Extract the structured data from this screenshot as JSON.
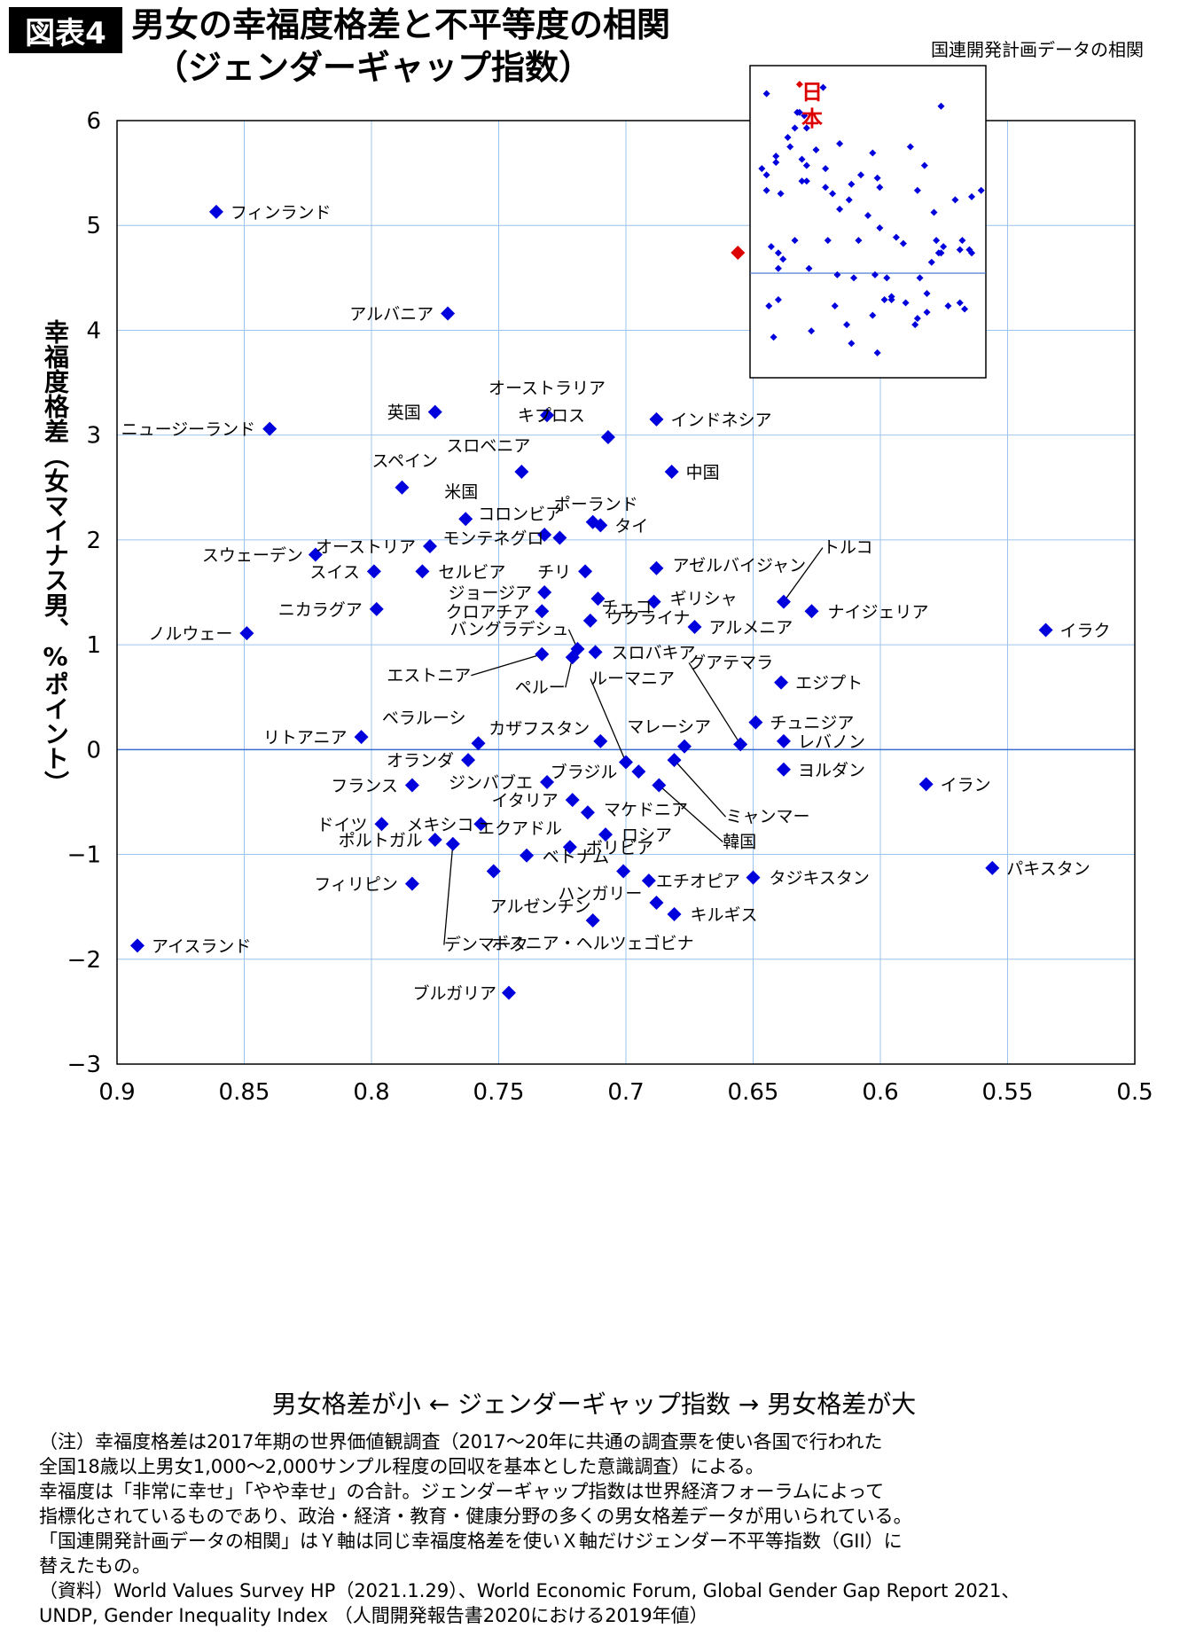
{
  "header": {
    "badge": "図表4",
    "title_line1": "男女の幸福度格差と不平等度の相関",
    "title_line2": "（ジェンダーギャップ指数）"
  },
  "axes": {
    "ylabel": "幸福度格差（女マイナス男、%ポイント）",
    "xlabel": "男女格差が小 ← ジェンダーギャップ指数 → 男女格差が大",
    "x_ticks": [
      "0.9",
      "0.85",
      "0.8",
      "0.75",
      "0.7",
      "0.65",
      "0.6",
      "0.55",
      "0.5"
    ],
    "y_ticks": [
      "6",
      "5",
      "4",
      "3",
      "2",
      "1",
      "0",
      "−1",
      "−2",
      "−3"
    ]
  },
  "inset": {
    "title": "国連開発計画データの相関",
    "japan_label": "日本"
  },
  "notes": [
    "（注）幸福度格差は2017年期の世界価値観調査（2017〜20年に共通の調査票を使い各国で行われた",
    "全国18歳以上男女1,000〜2,000サンプル程度の回収を基本とした意識調査）による。",
    "幸福度は「非常に幸せ」「やや幸せ」の合計。ジェンダーギャップ指数は世界経済フォーラムによって",
    "指標化されているものであり、政治・経済・教育・健康分野の多くの男女格差データが用いられている。",
    "「国連開発計画データの相関」はＹ軸は同じ幸福度格差を使いＸ軸だけジェンダー不平等指数（GII）に",
    "替えたもの。",
    "（資料）World Values Survey HP（2021.1.29）、World Economic Forum, Global Gender Gap Report 2021、",
    "UNDP, Gender Inequality Index （人間開発報告書2020における2019年値）"
  ],
  "colors": {
    "point": "#0000dd",
    "japan": "#dd0000",
    "grid": "#9cc4ec"
  },
  "chart_data": [
    {
      "type": "scatter",
      "xlabel": "男女格差が小 ← ジェンダーギャップ指数 → 男女格差が大",
      "ylabel": "幸福度格差（女マイナス男、%ポイント）",
      "xlim": [
        0.9,
        0.5
      ],
      "ylim": [
        -3,
        6
      ],
      "x_reversed": true,
      "grid": true,
      "points": [
        {
          "label": "フィンランド",
          "x": 0.861,
          "y": 5.13
        },
        {
          "label": "日本",
          "x": 0.656,
          "y": 4.74,
          "highlight": true
        },
        {
          "label": "アルバニア",
          "x": 0.77,
          "y": 4.16
        },
        {
          "label": "英国",
          "x": 0.775,
          "y": 3.22
        },
        {
          "label": "ニュージーランド",
          "x": 0.84,
          "y": 3.06
        },
        {
          "label": "オーストラリア",
          "x": 0.731,
          "y": 3.19
        },
        {
          "label": "キプロス",
          "x": 0.707,
          "y": 2.98
        },
        {
          "label": "インドネシア",
          "x": 0.688,
          "y": 3.15
        },
        {
          "label": "スロベニア",
          "x": 0.741,
          "y": 2.65
        },
        {
          "label": "中国",
          "x": 0.682,
          "y": 2.65
        },
        {
          "label": "スペイン",
          "x": 0.788,
          "y": 2.5
        },
        {
          "label": "米国",
          "x": 0.763,
          "y": 2.2
        },
        {
          "label": "ポーランド",
          "x": 0.713,
          "y": 2.17
        },
        {
          "label": "タイ",
          "x": 0.71,
          "y": 2.14
        },
        {
          "label": "コロンビア",
          "x": 0.732,
          "y": 2.05
        },
        {
          "label": "モンテネグロ",
          "x": 0.726,
          "y": 2.02
        },
        {
          "label": "オーストリア",
          "x": 0.777,
          "y": 1.94
        },
        {
          "label": "スウェーデン",
          "x": 0.822,
          "y": 1.86
        },
        {
          "label": "スイス",
          "x": 0.799,
          "y": 1.7
        },
        {
          "label": "セルビア",
          "x": 0.78,
          "y": 1.7
        },
        {
          "label": "チリ",
          "x": 0.716,
          "y": 1.7
        },
        {
          "label": "チェコ",
          "x": 0.711,
          "y": 1.44
        },
        {
          "label": "アゼルバイジャン",
          "x": 0.688,
          "y": 1.73
        },
        {
          "label": "トルコ",
          "x": 0.638,
          "y": 1.41
        },
        {
          "label": "ジョージア",
          "x": 0.732,
          "y": 1.5
        },
        {
          "label": "ギリシャ",
          "x": 0.689,
          "y": 1.41
        },
        {
          "label": "ナイジェリア",
          "x": 0.627,
          "y": 1.32
        },
        {
          "label": "ニカラグア",
          "x": 0.798,
          "y": 1.34
        },
        {
          "label": "クロアチア",
          "x": 0.733,
          "y": 1.32
        },
        {
          "label": "ウクライナ",
          "x": 0.714,
          "y": 1.23
        },
        {
          "label": "アルメニア",
          "x": 0.673,
          "y": 1.17
        },
        {
          "label": "イラク",
          "x": 0.535,
          "y": 1.14
        },
        {
          "label": "ノルウェー",
          "x": 0.849,
          "y": 1.11
        },
        {
          "label": "バングラデシュ",
          "x": 0.719,
          "y": 0.96
        },
        {
          "label": "スロバキア",
          "x": 0.712,
          "y": 0.93
        },
        {
          "label": "エストニア",
          "x": 0.733,
          "y": 0.91
        },
        {
          "label": "ペルー",
          "x": 0.721,
          "y": 0.88
        },
        {
          "label": "グアテマラ",
          "x": 0.655,
          "y": 0.05
        },
        {
          "label": "エジプト",
          "x": 0.639,
          "y": 0.64
        },
        {
          "label": "チュニジア",
          "x": 0.649,
          "y": 0.26
        },
        {
          "label": "レバノン",
          "x": 0.638,
          "y": 0.08
        },
        {
          "label": "ルーマニア",
          "x": 0.7,
          "y": -0.12
        },
        {
          "label": "リトアニア",
          "x": 0.804,
          "y": 0.12
        },
        {
          "label": "ベラルーシ",
          "x": 0.758,
          "y": 0.06
        },
        {
          "label": "カザフスタン",
          "x": 0.71,
          "y": 0.08
        },
        {
          "label": "マレーシア",
          "x": 0.677,
          "y": 0.03
        },
        {
          "label": "オランダ",
          "x": 0.762,
          "y": -0.1
        },
        {
          "label": "ヨルダン",
          "x": 0.638,
          "y": -0.19
        },
        {
          "label": "ブラジル",
          "x": 0.695,
          "y": -0.21
        },
        {
          "label": "ミャンマー",
          "x": 0.681,
          "y": -0.1
        },
        {
          "label": "イラン",
          "x": 0.582,
          "y": -0.33
        },
        {
          "label": "フランス",
          "x": 0.784,
          "y": -0.34
        },
        {
          "label": "ジンバブエ",
          "x": 0.731,
          "y": -0.31
        },
        {
          "label": "韓国",
          "x": 0.687,
          "y": -0.34
        },
        {
          "label": "イタリア",
          "x": 0.721,
          "y": -0.48
        },
        {
          "label": "マケドニア",
          "x": 0.715,
          "y": -0.6
        },
        {
          "label": "ドイツ",
          "x": 0.796,
          "y": -0.71
        },
        {
          "label": "メキシコ",
          "x": 0.757,
          "y": -0.71
        },
        {
          "label": "ロシア",
          "x": 0.708,
          "y": -0.81
        },
        {
          "label": "ポルトガル",
          "x": 0.775,
          "y": -0.86
        },
        {
          "label": "エクアドル",
          "x": 0.739,
          "y": -1.01
        },
        {
          "label": "デンマーク",
          "x": 0.768,
          "y": -0.9
        },
        {
          "label": "ボリビア",
          "x": 0.722,
          "y": -0.93
        },
        {
          "label": "パキスタン",
          "x": 0.556,
          "y": -1.13
        },
        {
          "label": "アルゼンチン",
          "x": 0.752,
          "y": -1.16
        },
        {
          "label": "ベトナム",
          "x": 0.701,
          "y": -1.16
        },
        {
          "label": "タジキスタン",
          "x": 0.65,
          "y": -1.22
        },
        {
          "label": "フィリピン",
          "x": 0.784,
          "y": -1.28
        },
        {
          "label": "エチオピア",
          "x": 0.691,
          "y": -1.25
        },
        {
          "label": "ハンガリー",
          "x": 0.688,
          "y": -1.46
        },
        {
          "label": "キルギス",
          "x": 0.681,
          "y": -1.57
        },
        {
          "label": "ボスニア・ヘルツェゴビナ",
          "x": 0.713,
          "y": -1.63
        },
        {
          "label": "アイスランド",
          "x": 0.892,
          "y": -1.87
        },
        {
          "label": "ブルガリア",
          "x": 0.746,
          "y": -2.32
        }
      ]
    },
    {
      "type": "scatter",
      "title": "国連開発計画データの相関",
      "points": [
        {
          "x": 0.07,
          "y": 0.91
        },
        {
          "x": 0.21,
          "y": 0.94,
          "highlight": true,
          "label": "日本"
        },
        {
          "x": 0.31,
          "y": 0.93
        },
        {
          "x": 0.2,
          "y": 0.85
        },
        {
          "x": 0.21,
          "y": 0.85
        },
        {
          "x": 0.23,
          "y": 0.84
        },
        {
          "x": 0.19,
          "y": 0.8
        },
        {
          "x": 0.24,
          "y": 0.8
        },
        {
          "x": 0.17,
          "y": 0.74
        },
        {
          "x": 0.28,
          "y": 0.73
        },
        {
          "x": 0.38,
          "y": 0.75
        },
        {
          "x": 0.11,
          "y": 0.71
        },
        {
          "x": 0.16,
          "y": 0.77
        },
        {
          "x": 0.05,
          "y": 0.67
        },
        {
          "x": 0.07,
          "y": 0.65
        },
        {
          "x": 0.11,
          "y": 0.69
        },
        {
          "x": 0.22,
          "y": 0.7
        },
        {
          "x": 0.24,
          "y": 0.68
        },
        {
          "x": 0.22,
          "y": 0.63
        },
        {
          "x": 0.24,
          "y": 0.63
        },
        {
          "x": 0.35,
          "y": 0.59
        },
        {
          "x": 0.32,
          "y": 0.67
        },
        {
          "x": 0.43,
          "y": 0.62
        },
        {
          "x": 0.42,
          "y": 0.57
        },
        {
          "x": 0.47,
          "y": 0.65
        },
        {
          "x": 0.52,
          "y": 0.72
        },
        {
          "x": 0.54,
          "y": 0.64
        },
        {
          "x": 0.55,
          "y": 0.61
        },
        {
          "x": 0.07,
          "y": 0.6
        },
        {
          "x": 0.13,
          "y": 0.59
        },
        {
          "x": 0.32,
          "y": 0.61
        },
        {
          "x": 0.68,
          "y": 0.74
        },
        {
          "x": 0.74,
          "y": 0.68
        },
        {
          "x": 0.71,
          "y": 0.6
        },
        {
          "x": 0.81,
          "y": 0.87
        },
        {
          "x": 0.94,
          "y": 0.58
        },
        {
          "x": 0.98,
          "y": 0.6
        },
        {
          "x": 0.78,
          "y": 0.53
        },
        {
          "x": 0.87,
          "y": 0.57
        },
        {
          "x": 0.38,
          "y": 0.54
        },
        {
          "x": 0.5,
          "y": 0.52
        },
        {
          "x": 0.09,
          "y": 0.42
        },
        {
          "x": 0.12,
          "y": 0.4
        },
        {
          "x": 0.14,
          "y": 0.38
        },
        {
          "x": 0.19,
          "y": 0.44
        },
        {
          "x": 0.33,
          "y": 0.44
        },
        {
          "x": 0.46,
          "y": 0.44
        },
        {
          "x": 0.55,
          "y": 0.48
        },
        {
          "x": 0.62,
          "y": 0.45
        },
        {
          "x": 0.65,
          "y": 0.43
        },
        {
          "x": 0.79,
          "y": 0.44
        },
        {
          "x": 0.82,
          "y": 0.42
        },
        {
          "x": 0.89,
          "y": 0.41
        },
        {
          "x": 0.9,
          "y": 0.44
        },
        {
          "x": 0.93,
          "y": 0.41
        },
        {
          "x": 0.8,
          "y": 0.4
        },
        {
          "x": 0.12,
          "y": 0.35
        },
        {
          "x": 0.25,
          "y": 0.35
        },
        {
          "x": 0.37,
          "y": 0.33
        },
        {
          "x": 0.44,
          "y": 0.32
        },
        {
          "x": 0.53,
          "y": 0.33
        },
        {
          "x": 0.58,
          "y": 0.32
        },
        {
          "x": 0.72,
          "y": 0.32
        },
        {
          "x": 0.77,
          "y": 0.37
        },
        {
          "x": 0.81,
          "y": 0.4
        },
        {
          "x": 0.94,
          "y": 0.4
        },
        {
          "x": 0.57,
          "y": 0.25
        },
        {
          "x": 0.6,
          "y": 0.25
        },
        {
          "x": 0.75,
          "y": 0.27
        },
        {
          "x": 0.08,
          "y": 0.23
        },
        {
          "x": 0.12,
          "y": 0.25
        },
        {
          "x": 0.36,
          "y": 0.23
        },
        {
          "x": 0.52,
          "y": 0.2
        },
        {
          "x": 0.6,
          "y": 0.26
        },
        {
          "x": 0.66,
          "y": 0.24
        },
        {
          "x": 0.75,
          "y": 0.21
        },
        {
          "x": 0.84,
          "y": 0.23
        },
        {
          "x": 0.89,
          "y": 0.24
        },
        {
          "x": 0.91,
          "y": 0.22
        },
        {
          "x": 0.41,
          "y": 0.17
        },
        {
          "x": 0.71,
          "y": 0.19
        },
        {
          "x": 0.7,
          "y": 0.17
        },
        {
          "x": 0.1,
          "y": 0.13
        },
        {
          "x": 0.26,
          "y": 0.15
        },
        {
          "x": 0.43,
          "y": 0.11
        },
        {
          "x": 0.54,
          "y": 0.08
        }
      ],
      "reference_line_y": 0.335
    }
  ]
}
